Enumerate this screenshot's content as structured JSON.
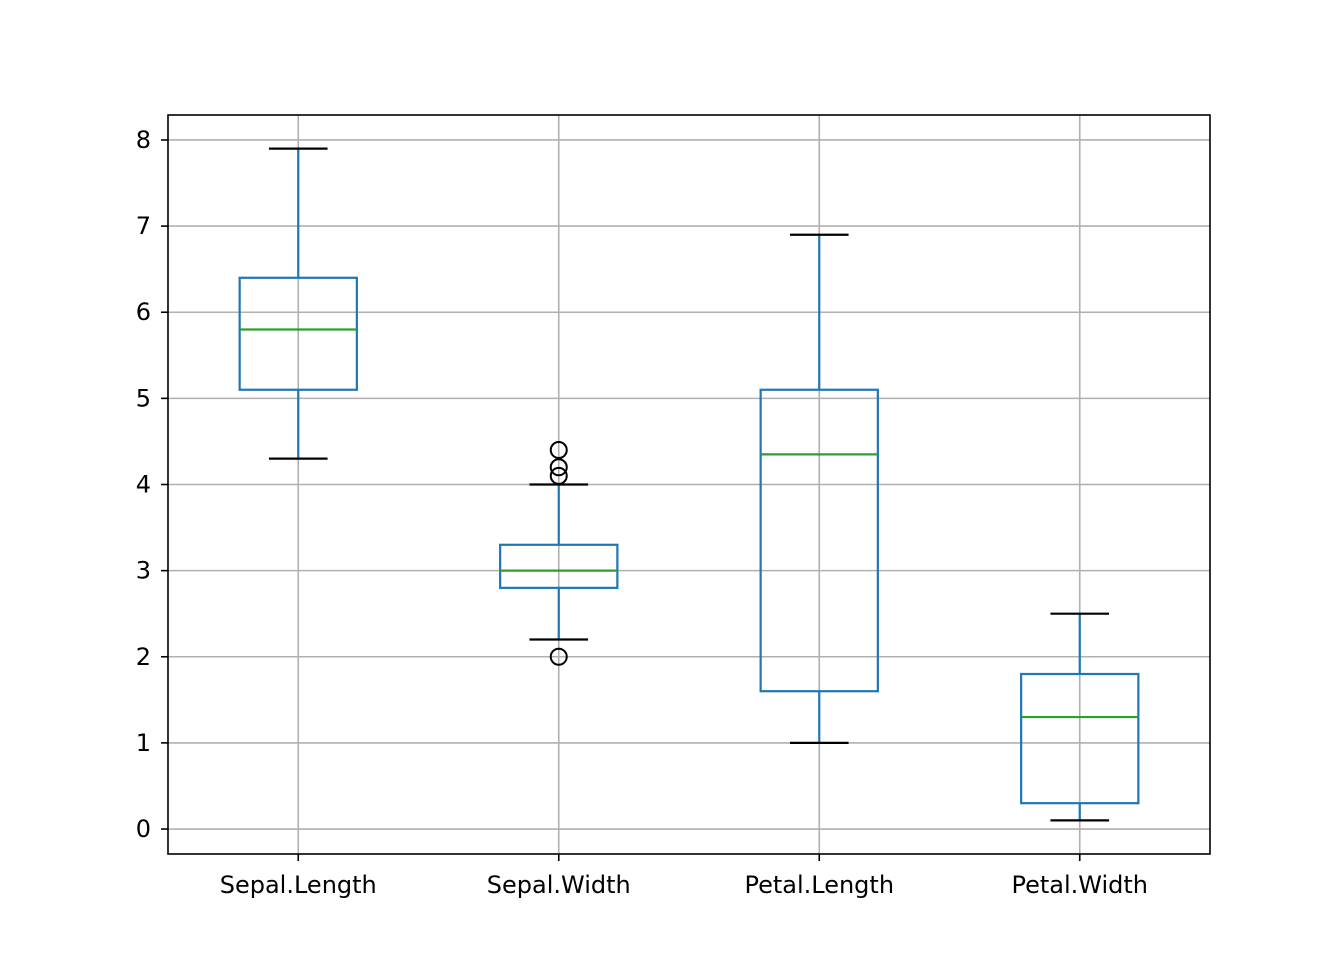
{
  "chart_data": {
    "type": "box",
    "categories": [
      "Sepal.Length",
      "Sepal.Width",
      "Petal.Length",
      "Petal.Width"
    ],
    "boxes": [
      {
        "whisker_low": 4.3,
        "q1": 5.1,
        "median": 5.8,
        "q3": 6.4,
        "whisker_high": 7.9,
        "outliers": []
      },
      {
        "whisker_low": 2.2,
        "q1": 2.8,
        "median": 3.0,
        "q3": 3.3,
        "whisker_high": 4.0,
        "outliers": [
          4.4,
          4.2,
          4.1,
          2.0
        ]
      },
      {
        "whisker_low": 1.0,
        "q1": 1.6,
        "median": 4.35,
        "q3": 5.1,
        "whisker_high": 6.9,
        "outliers": []
      },
      {
        "whisker_low": 0.1,
        "q1": 0.3,
        "median": 1.3,
        "q3": 1.8,
        "whisker_high": 2.5,
        "outliers": []
      }
    ],
    "ylim": [
      -0.29,
      8.29
    ],
    "yticks": [
      "0",
      "1",
      "2",
      "3",
      "4",
      "5",
      "6",
      "7",
      "8"
    ],
    "grid": true,
    "title": "",
    "xlabel": "",
    "ylabel": "",
    "colors": {
      "box": "#1f77b4",
      "median": "#2ca02c",
      "cap": "#000000",
      "outlier": "#000000",
      "grid": "#b0b0b0",
      "axes": "#000000"
    }
  }
}
